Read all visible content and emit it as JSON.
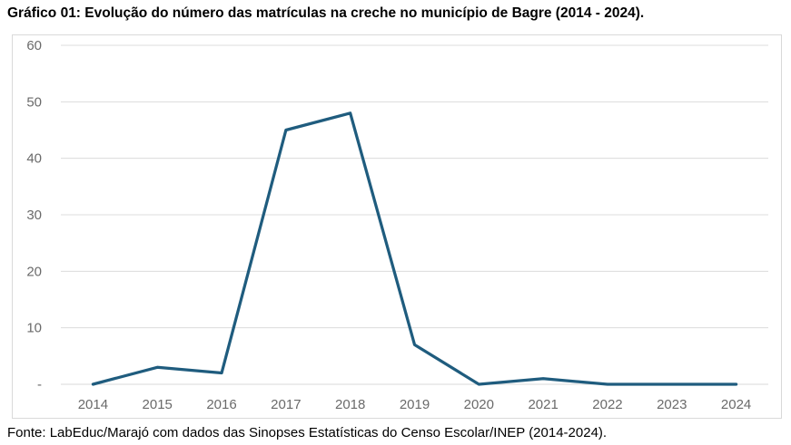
{
  "title": "Gráfico 01: Evolução do número das matrículas na creche no município de Bagre (2014 - 2024).",
  "footer": "Fonte: LabEduc/Marajó com dados das Sinopses Estatísticas do Censo Escolar/INEP (2014-2024).",
  "chart_data": {
    "type": "line",
    "title": "Gráfico 01: Evolução do número das matrículas na creche no município de Bagre (2014 - 2024).",
    "categories": [
      "2014",
      "2015",
      "2016",
      "2017",
      "2018",
      "2019",
      "2020",
      "2021",
      "2022",
      "2023",
      "2024"
    ],
    "series": [
      {
        "name": "Matrículas na creche",
        "values": [
          0,
          3,
          2,
          45,
          48,
          7,
          0,
          1,
          0,
          0,
          0
        ]
      }
    ],
    "xlabel": "",
    "ylabel": "",
    "ylim": [
      0,
      60
    ],
    "y_ticks": [
      0,
      10,
      20,
      30,
      40,
      50,
      60
    ],
    "y_tick_labels": [
      "-",
      "10",
      "20",
      "30",
      "40",
      "50",
      "60"
    ],
    "grid": true,
    "legend_position": "none",
    "colors": {
      "line": "#1f5c7e",
      "grid": "#dcdcdc",
      "axis_line": "#d9d9d9",
      "tick_label": "#6a6a6a",
      "frame_border": "#d9d9d9",
      "background": "#ffffff"
    }
  }
}
